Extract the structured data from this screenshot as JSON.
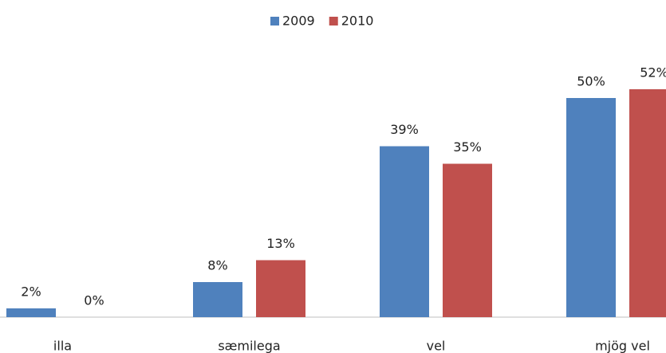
{
  "chart_data": {
    "type": "bar",
    "categories": [
      "illa",
      "sæmilega",
      "vel",
      "mjög vel"
    ],
    "series": [
      {
        "name": "2009",
        "color": "#4f81bd",
        "values": [
          2,
          8,
          39,
          50
        ],
        "value_labels": [
          "2%",
          "8%",
          "39%",
          "50%"
        ]
      },
      {
        "name": "2010",
        "color": "#c0504d",
        "values": [
          0,
          13,
          35,
          52
        ],
        "value_labels": [
          "0%",
          "13%",
          "35%",
          "52%"
        ]
      }
    ],
    "legend": "top"
  }
}
